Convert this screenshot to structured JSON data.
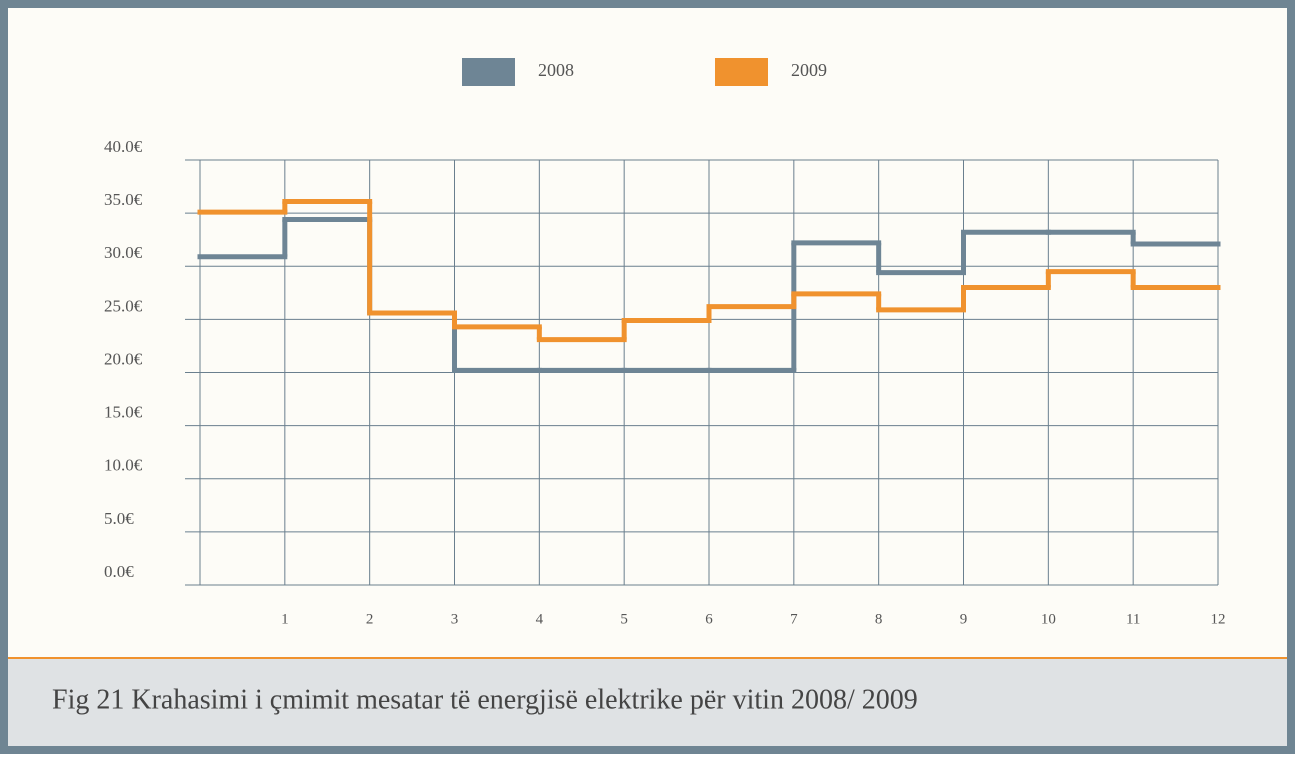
{
  "chart_data": {
    "type": "step",
    "caption": "Fig 21 Krahasimi i çmimit  mesatar të energjisë elektrike  për vitin 2008/ 2009",
    "x": [
      1,
      2,
      3,
      4,
      5,
      6,
      7,
      8,
      9,
      10,
      11,
      12
    ],
    "xlim": [
      0,
      12
    ],
    "series": [
      {
        "name": "2008",
        "color": "#6e8595",
        "values": [
          30.9,
          34.4,
          25.6,
          20.2,
          20.2,
          20.2,
          20.2,
          32.2,
          29.4,
          33.2,
          33.2,
          32.1
        ]
      },
      {
        "name": "2009",
        "color": "#f0922e",
        "values": [
          35.1,
          36.1,
          25.6,
          24.3,
          23.1,
          24.9,
          26.2,
          27.4,
          25.9,
          28.0,
          29.5,
          28.0
        ]
      }
    ],
    "ylim": [
      0,
      40
    ],
    "yticks": [
      {
        "value": 0,
        "label": "0.0€"
      },
      {
        "value": 5,
        "label": "5.0€"
      },
      {
        "value": 10,
        "label": "10.0€"
      },
      {
        "value": 15,
        "label": "15.0€"
      },
      {
        "value": 20,
        "label": "20.0€"
      },
      {
        "value": 25,
        "label": "25.0€"
      },
      {
        "value": 30,
        "label": "30.0€"
      },
      {
        "value": 35,
        "label": "35.0€"
      },
      {
        "value": 40,
        "label": "40.0€"
      }
    ],
    "grid": true
  }
}
